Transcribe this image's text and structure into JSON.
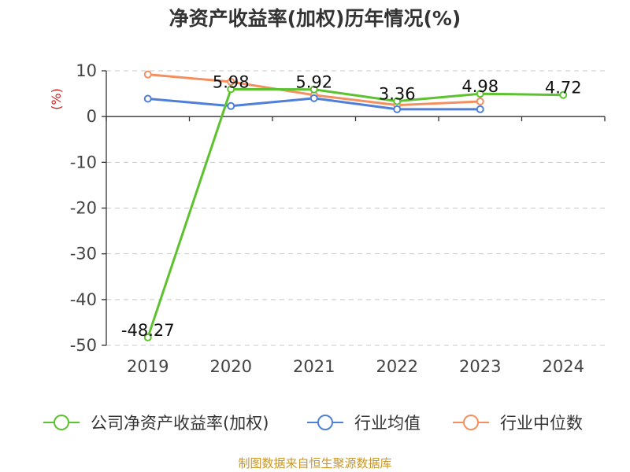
{
  "title": "净资产收益率(加权)历年情况(%)",
  "source": "制图数据来自恒生聚源数据库",
  "chart_data": {
    "type": "line",
    "title": "净资产收益率(加权)历年情况(%)",
    "ylabel": "(%)",
    "xlabel": "",
    "ylim": [
      -50,
      10
    ],
    "yticks": [
      10,
      0,
      -10,
      -20,
      -30,
      -40,
      -50
    ],
    "grid": true,
    "legend_position": "bottom",
    "categories": [
      "2019",
      "2020",
      "2021",
      "2022",
      "2023",
      "2024"
    ],
    "series": [
      {
        "name": "公司净资产收益率(加权)",
        "color": "#5cc22f",
        "values": [
          -48.27,
          5.98,
          5.92,
          3.36,
          4.98,
          4.72
        ],
        "labels": [
          "-48.27",
          "5.98",
          "5.92",
          "3.36",
          "4.98",
          "4.72"
        ]
      },
      {
        "name": "行业均值",
        "color": "#4f7fd8",
        "values": [
          3.9,
          2.3,
          4.0,
          1.6,
          1.6,
          null
        ]
      },
      {
        "name": "行业中位数",
        "color": "#f49060",
        "values": [
          9.2,
          7.6,
          4.7,
          2.5,
          3.3,
          null
        ]
      }
    ]
  }
}
